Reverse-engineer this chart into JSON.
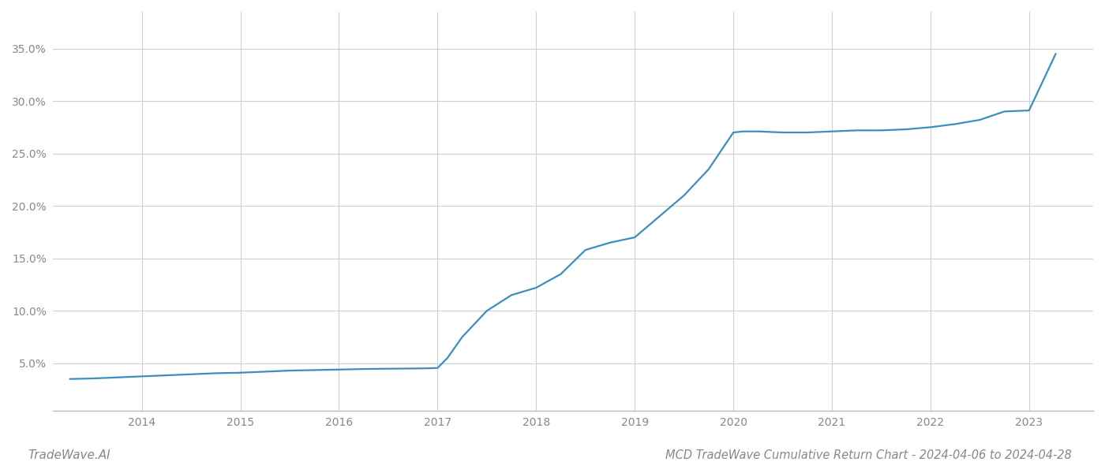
{
  "title": "MCD TradeWave Cumulative Return Chart - 2024-04-06 to 2024-04-28",
  "watermark": "TradeWave.AI",
  "line_color": "#3a8fc0",
  "background_color": "#ffffff",
  "grid_color": "#d0d0d0",
  "x_years": [
    2014,
    2015,
    2016,
    2017,
    2018,
    2019,
    2020,
    2021,
    2022,
    2023
  ],
  "x_data": [
    2013.27,
    2013.5,
    2013.75,
    2014.0,
    2014.25,
    2014.5,
    2014.75,
    2015.0,
    2015.25,
    2015.5,
    2015.75,
    2016.0,
    2016.1,
    2016.25,
    2016.5,
    2016.75,
    2016.9,
    2017.0,
    2017.1,
    2017.25,
    2017.5,
    2017.75,
    2018.0,
    2018.25,
    2018.5,
    2018.75,
    2019.0,
    2019.25,
    2019.5,
    2019.75,
    2020.0,
    2020.1,
    2020.25,
    2020.5,
    2020.75,
    2021.0,
    2021.25,
    2021.5,
    2021.75,
    2022.0,
    2022.25,
    2022.5,
    2022.75,
    2023.0,
    2023.27
  ],
  "y_data": [
    3.5,
    3.55,
    3.65,
    3.75,
    3.85,
    3.95,
    4.05,
    4.1,
    4.2,
    4.3,
    4.35,
    4.4,
    4.42,
    4.45,
    4.48,
    4.5,
    4.52,
    4.55,
    5.5,
    7.5,
    10.0,
    11.5,
    12.2,
    13.5,
    15.8,
    16.5,
    17.0,
    19.0,
    21.0,
    23.5,
    27.0,
    27.1,
    27.1,
    27.0,
    27.0,
    27.1,
    27.2,
    27.2,
    27.3,
    27.5,
    27.8,
    28.2,
    29.0,
    29.1,
    34.5
  ],
  "yticks": [
    5.0,
    10.0,
    15.0,
    20.0,
    25.0,
    30.0,
    35.0
  ],
  "ylim": [
    0.5,
    38.5
  ],
  "xlim": [
    2013.1,
    2023.65
  ],
  "title_fontsize": 10.5,
  "watermark_fontsize": 11,
  "tick_fontsize": 10,
  "line_width": 1.6
}
